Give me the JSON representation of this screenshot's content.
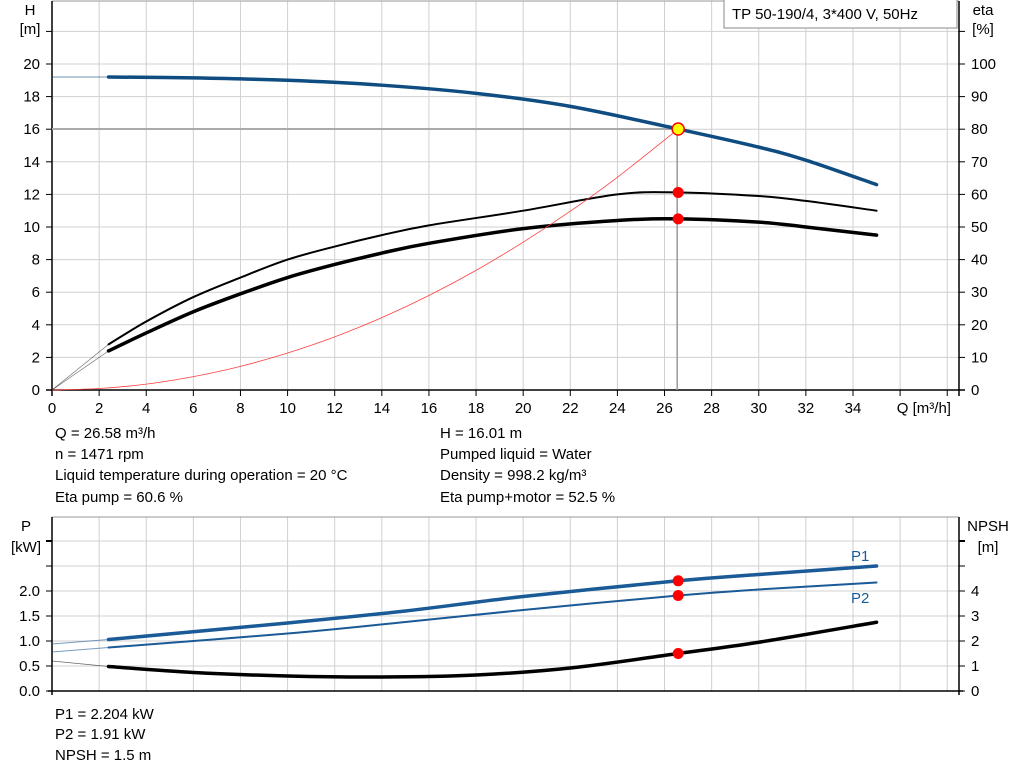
{
  "legend_box": "TP 50-190/4, 3*400 V, 50Hz",
  "info_top": {
    "left": [
      "Q = 26.58 m³/h",
      "n = 1471 rpm",
      "Liquid temperature during operation = 20 °C",
      "Eta pump = 60.6 %"
    ],
    "right": [
      "H = 16.01 m",
      "Pumped liquid = Water",
      "Density = 998.2 kg/m³",
      "Eta pump+motor = 52.5 %"
    ]
  },
  "info_bottom": [
    "P1 = 2.204 kW",
    "P2 = 1.91 kW",
    "NPSH = 1.5 m"
  ],
  "colors": {
    "head": "#0f4c81",
    "power": "#1a5a96",
    "efficiency": "#000000",
    "system": "#ff4040",
    "duty_point": "#ff0000",
    "duty_marker_fill": "#ffff00",
    "grid": "#d0d0d0"
  },
  "chart_data": [
    {
      "type": "line",
      "xlabel": "Q [m³/h]",
      "ylabel": [
        "H",
        "[m]"
      ],
      "y2label": [
        "eta",
        "[%]"
      ],
      "xlim": [
        0,
        38
      ],
      "xticks": [
        0,
        2,
        4,
        6,
        8,
        10,
        12,
        14,
        16,
        18,
        20,
        22,
        24,
        26,
        28,
        30,
        32,
        34
      ],
      "ylim": [
        0,
        24
      ],
      "yticks": [
        0,
        2,
        4,
        6,
        8,
        10,
        12,
        14,
        16,
        18,
        20
      ],
      "y2lim": [
        0,
        120
      ],
      "y2ticks": [
        0,
        10,
        20,
        30,
        40,
        50,
        60,
        70,
        80,
        90,
        100
      ],
      "grid": true,
      "duty_point": {
        "Q": 26.58,
        "H": 16.01,
        "eta_pump": 60.6,
        "eta_pump_motor": 52.5
      },
      "series": [
        {
          "axis": "left",
          "role": "head",
          "x": [
            0,
            2.4,
            6,
            10,
            14,
            18,
            22,
            26.58,
            30,
            32,
            35
          ],
          "y": [
            19.2,
            19.2,
            19.15,
            19.0,
            18.7,
            18.2,
            17.4,
            16.01,
            14.9,
            14.1,
            12.6
          ]
        },
        {
          "axis": "right",
          "role": "eta pump",
          "x": [
            0,
            2.4,
            4,
            6,
            8,
            10,
            12,
            14,
            16,
            20,
            24,
            26.58,
            30,
            32,
            35
          ],
          "y": [
            0,
            14,
            21,
            28.5,
            34.5,
            40,
            44,
            47.5,
            50.5,
            55,
            60,
            60.6,
            59.5,
            58,
            55
          ]
        },
        {
          "axis": "right",
          "role": "eta pump+motor",
          "x": [
            0,
            2.4,
            4,
            6,
            8,
            10,
            12,
            14,
            16,
            20,
            24,
            26.58,
            30,
            32,
            35
          ],
          "y": [
            0,
            12,
            17.5,
            24,
            29.5,
            34.5,
            38.5,
            42,
            45,
            49.5,
            52,
            52.5,
            51.5,
            50,
            47.5
          ]
        },
        {
          "axis": "left",
          "role": "system curve",
          "x": [
            0,
            2,
            4,
            6,
            8,
            10,
            12,
            14,
            16,
            18,
            20,
            22,
            24,
            26.58
          ],
          "y": [
            0,
            0.09,
            0.36,
            0.82,
            1.45,
            2.27,
            3.26,
            4.44,
            5.8,
            7.34,
            9.07,
            10.97,
            13.05,
            16.01
          ]
        }
      ]
    },
    {
      "type": "line",
      "ylabel": [
        "P",
        "[kW]"
      ],
      "y2label": [
        "NPSH",
        "[m]"
      ],
      "xlim": [
        0,
        38
      ],
      "ylim": [
        0,
        3.5
      ],
      "yticks": [
        0.0,
        0.5,
        1.0,
        1.5,
        2.0
      ],
      "ytick_labels": [
        "0.0",
        "0.5",
        "1.0",
        "1.5",
        "2.0"
      ],
      "y2lim": [
        0,
        7
      ],
      "y2ticks": [
        0,
        1,
        2,
        3,
        4
      ],
      "grid": true,
      "series": [
        {
          "name": "P1",
          "axis": "left",
          "x": [
            0,
            2.4,
            10,
            15,
            20,
            26.58,
            30,
            35
          ],
          "y": [
            0.94,
            1.03,
            1.36,
            1.6,
            1.89,
            2.204,
            2.33,
            2.5
          ]
        },
        {
          "name": "P2",
          "axis": "left",
          "x": [
            0,
            2.4,
            10,
            15,
            20,
            26.58,
            30,
            35
          ],
          "y": [
            0.78,
            0.87,
            1.15,
            1.38,
            1.62,
            1.91,
            2.03,
            2.17
          ]
        },
        {
          "axis": "right",
          "role": "NPSH",
          "x": [
            0,
            2.4,
            6,
            10,
            14,
            18,
            22,
            26.58,
            30,
            35
          ],
          "y": [
            1.2,
            0.98,
            0.74,
            0.6,
            0.56,
            0.64,
            0.92,
            1.5,
            1.95,
            2.75
          ]
        }
      ],
      "duty_point": {
        "Q": 26.58,
        "P1": 2.204,
        "P2": 1.91,
        "NPSH": 1.5
      }
    }
  ]
}
